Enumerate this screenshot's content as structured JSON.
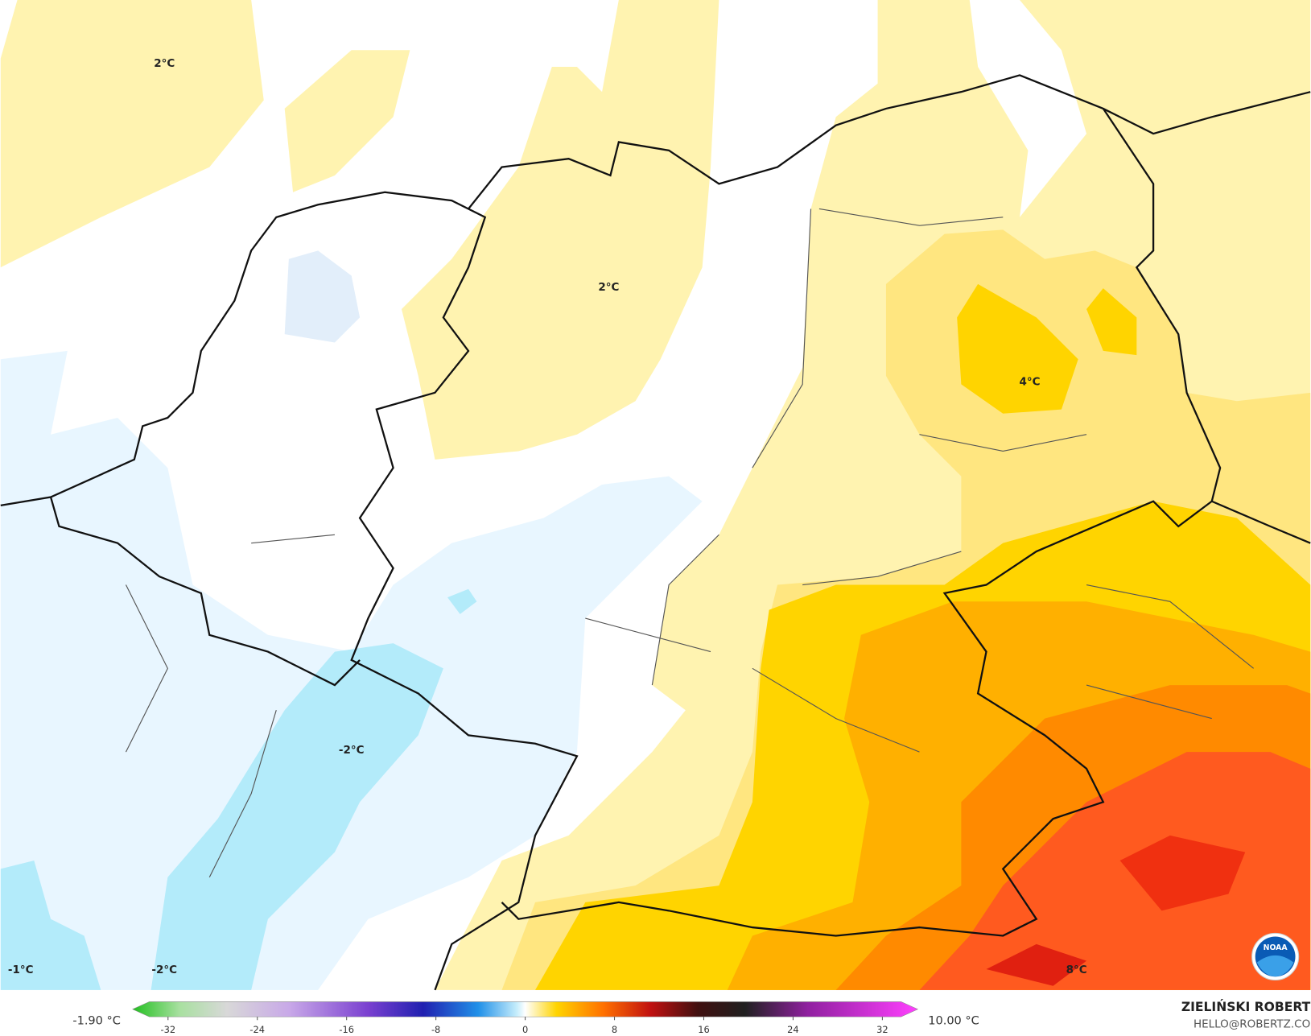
{
  "map_labels": [
    "2°C",
    "2°C",
    "4°C",
    "-2°C",
    "-1°C",
    "-2°C",
    "8°C"
  ],
  "colorbar": {
    "ticks": [
      -32,
      -24,
      -16,
      -8,
      0,
      8,
      16,
      24,
      32
    ],
    "min_label": "-1.90 °C",
    "max_label": "10.00 °C"
  },
  "credit": {
    "author": "ZIELIŃSKI ROBERT",
    "email": "HELLO@ROBERTZ.CO"
  },
  "logo": "NOAA"
}
